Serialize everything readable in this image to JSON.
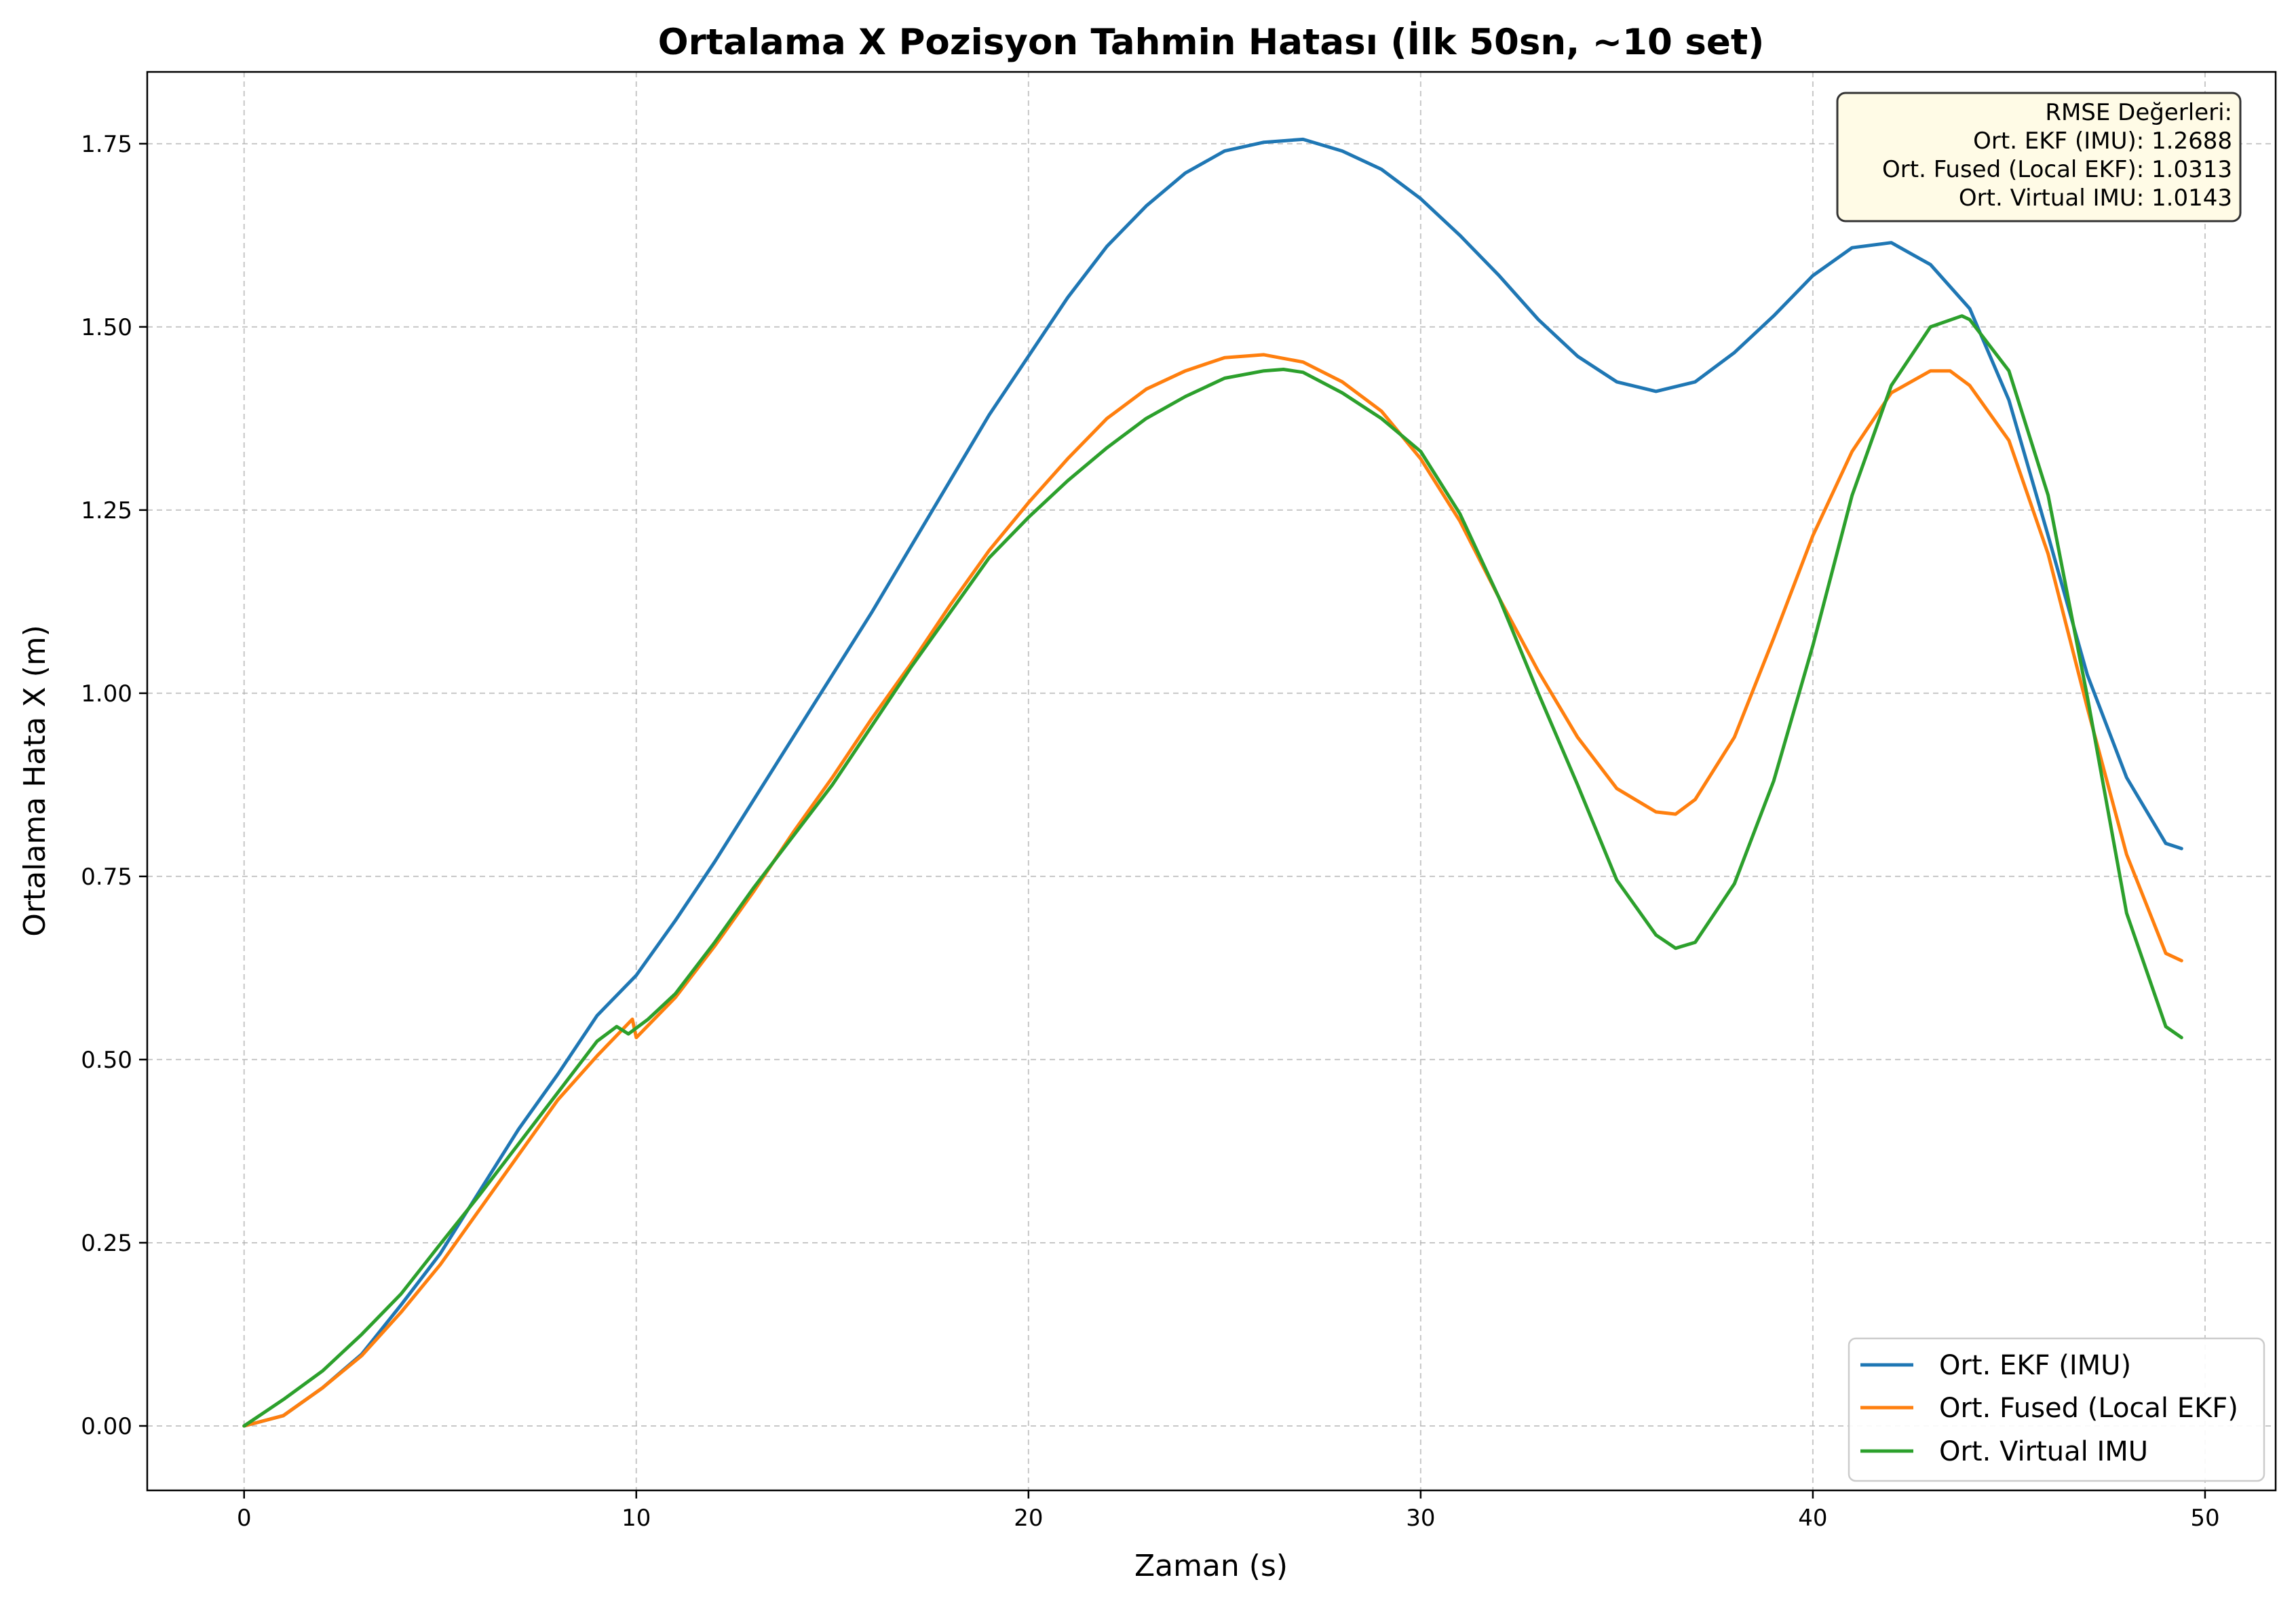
{
  "chart_data": {
    "type": "line",
    "title": "Ortalama X Pozisyon Tahmin Hatası (İlk 50sn, ~10 set)",
    "xlabel": "Zaman (s)",
    "ylabel": "Ortalama Hata X (m)",
    "xlim": [
      -2.47,
      51.8
    ],
    "ylim": [
      -0.088,
      1.848
    ],
    "xticks": [
      0,
      10,
      20,
      30,
      40,
      50
    ],
    "xtick_labels": [
      "0",
      "10",
      "20",
      "30",
      "40",
      "50"
    ],
    "yticks": [
      0,
      0.25,
      0.5,
      0.75,
      1.0,
      1.25,
      1.5,
      1.75
    ],
    "ytick_labels": [
      "0.00",
      "0.25",
      "0.50",
      "0.75",
      "1.00",
      "1.25",
      "1.50",
      "1.75"
    ],
    "grid": true,
    "legend_position": "lower-right",
    "series": [
      {
        "name": "Ort. EKF (IMU)",
        "color": "#1f77b4",
        "points": [
          [
            0,
            0
          ],
          [
            1,
            0.014
          ],
          [
            2,
            0.052
          ],
          [
            3,
            0.098
          ],
          [
            4,
            0.165
          ],
          [
            5,
            0.235
          ],
          [
            6,
            0.32
          ],
          [
            7,
            0.405
          ],
          [
            8,
            0.48
          ],
          [
            9,
            0.56
          ],
          [
            10,
            0.615
          ],
          [
            11,
            0.69
          ],
          [
            12,
            0.77
          ],
          [
            13,
            0.855
          ],
          [
            14,
            0.94
          ],
          [
            15,
            1.025
          ],
          [
            16,
            1.11
          ],
          [
            17,
            1.2
          ],
          [
            18,
            1.29
          ],
          [
            19,
            1.38
          ],
          [
            20,
            1.46
          ],
          [
            21,
            1.54
          ],
          [
            22,
            1.61
          ],
          [
            23,
            1.665
          ],
          [
            24,
            1.71
          ],
          [
            25,
            1.74
          ],
          [
            26,
            1.752
          ],
          [
            27,
            1.756
          ],
          [
            28,
            1.74
          ],
          [
            29,
            1.715
          ],
          [
            30,
            1.675
          ],
          [
            31,
            1.625
          ],
          [
            32,
            1.57
          ],
          [
            33,
            1.51
          ],
          [
            34,
            1.46
          ],
          [
            35,
            1.425
          ],
          [
            36,
            1.412
          ],
          [
            37,
            1.425
          ],
          [
            38,
            1.465
          ],
          [
            39,
            1.515
          ],
          [
            40,
            1.57
          ],
          [
            41,
            1.608
          ],
          [
            42,
            1.615
          ],
          [
            43,
            1.585
          ],
          [
            44,
            1.525
          ],
          [
            45,
            1.4
          ],
          [
            46,
            1.215
          ],
          [
            47,
            1.025
          ],
          [
            48,
            0.885
          ],
          [
            49,
            0.795
          ],
          [
            49.4,
            0.788
          ]
        ]
      },
      {
        "name": "Ort. Fused (Local EKF)",
        "color": "#ff7f0e",
        "points": [
          [
            0,
            0
          ],
          [
            1,
            0.014
          ],
          [
            2,
            0.052
          ],
          [
            3,
            0.096
          ],
          [
            4,
            0.155
          ],
          [
            5,
            0.22
          ],
          [
            6,
            0.295
          ],
          [
            7,
            0.37
          ],
          [
            8,
            0.445
          ],
          [
            9,
            0.505
          ],
          [
            9.9,
            0.555
          ],
          [
            10,
            0.53
          ],
          [
            11,
            0.585
          ],
          [
            12,
            0.655
          ],
          [
            13,
            0.73
          ],
          [
            14,
            0.81
          ],
          [
            15,
            0.885
          ],
          [
            16,
            0.965
          ],
          [
            17,
            1.04
          ],
          [
            18,
            1.12
          ],
          [
            19,
            1.195
          ],
          [
            20,
            1.26
          ],
          [
            21,
            1.32
          ],
          [
            22,
            1.375
          ],
          [
            23,
            1.415
          ],
          [
            24,
            1.44
          ],
          [
            25,
            1.458
          ],
          [
            26,
            1.462
          ],
          [
            27,
            1.452
          ],
          [
            28,
            1.425
          ],
          [
            29,
            1.385
          ],
          [
            30,
            1.32
          ],
          [
            31,
            1.235
          ],
          [
            32,
            1.13
          ],
          [
            33,
            1.03
          ],
          [
            34,
            0.94
          ],
          [
            35,
            0.87
          ],
          [
            36,
            0.838
          ],
          [
            36.5,
            0.835
          ],
          [
            37,
            0.855
          ],
          [
            38,
            0.94
          ],
          [
            39,
            1.075
          ],
          [
            40,
            1.215
          ],
          [
            41,
            1.33
          ],
          [
            42,
            1.41
          ],
          [
            43,
            1.44
          ],
          [
            43.5,
            1.44
          ],
          [
            44,
            1.42
          ],
          [
            45,
            1.345
          ],
          [
            46,
            1.19
          ],
          [
            47,
            0.98
          ],
          [
            48,
            0.78
          ],
          [
            49,
            0.645
          ],
          [
            49.4,
            0.635
          ]
        ]
      },
      {
        "name": "Ort. Virtual IMU",
        "color": "#2ca02c",
        "points": [
          [
            0,
            0
          ],
          [
            1,
            0.036
          ],
          [
            2,
            0.075
          ],
          [
            3,
            0.125
          ],
          [
            4,
            0.18
          ],
          [
            5,
            0.248
          ],
          [
            6,
            0.315
          ],
          [
            7,
            0.385
          ],
          [
            8,
            0.455
          ],
          [
            9,
            0.525
          ],
          [
            9.5,
            0.545
          ],
          [
            9.8,
            0.535
          ],
          [
            10.3,
            0.555
          ],
          [
            11,
            0.59
          ],
          [
            12,
            0.66
          ],
          [
            13,
            0.735
          ],
          [
            14,
            0.805
          ],
          [
            15,
            0.875
          ],
          [
            16,
            0.955
          ],
          [
            17,
            1.035
          ],
          [
            18,
            1.11
          ],
          [
            19,
            1.185
          ],
          [
            20,
            1.24
          ],
          [
            21,
            1.29
          ],
          [
            22,
            1.335
          ],
          [
            23,
            1.375
          ],
          [
            24,
            1.405
          ],
          [
            25,
            1.43
          ],
          [
            26,
            1.44
          ],
          [
            26.5,
            1.442
          ],
          [
            27,
            1.438
          ],
          [
            28,
            1.41
          ],
          [
            29,
            1.375
          ],
          [
            30,
            1.33
          ],
          [
            31,
            1.245
          ],
          [
            32,
            1.13
          ],
          [
            33,
            1.0
          ],
          [
            34,
            0.875
          ],
          [
            35,
            0.745
          ],
          [
            36,
            0.67
          ],
          [
            36.5,
            0.652
          ],
          [
            37,
            0.66
          ],
          [
            38,
            0.74
          ],
          [
            39,
            0.88
          ],
          [
            40,
            1.065
          ],
          [
            41,
            1.27
          ],
          [
            42,
            1.42
          ],
          [
            43,
            1.5
          ],
          [
            43.8,
            1.515
          ],
          [
            44,
            1.51
          ],
          [
            45,
            1.44
          ],
          [
            46,
            1.27
          ],
          [
            47,
            0.995
          ],
          [
            48,
            0.7
          ],
          [
            49,
            0.545
          ],
          [
            49.4,
            0.53
          ]
        ]
      }
    ],
    "rmse_box": {
      "title": "RMSE Değerleri:",
      "lines": [
        "Ort. EKF (IMU): 1.2688",
        "Ort. Fused (Local EKF): 1.0313",
        "Ort. Virtual IMU: 1.0143"
      ]
    }
  }
}
